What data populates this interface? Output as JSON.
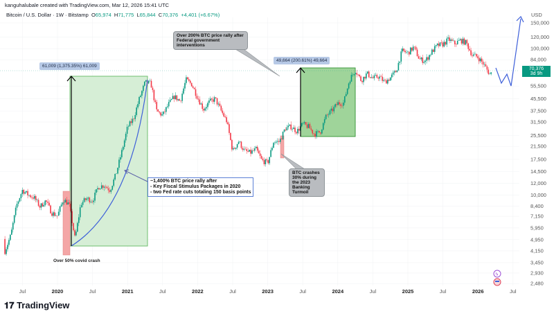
{
  "header": {
    "created": "kanguhalubale created with TradingView.com, Mar 12, 2026 15:41 UTC",
    "symbol": "Bitcoin / U.S. Dollar · 1W · Bitstamp",
    "o_label": "O",
    "o": "65,974",
    "h_label": "H",
    "h": "71,775",
    "l_label": "L",
    "l": "65,844",
    "c_label": "C",
    "c": "70,376",
    "change": "+4,401 (+6.67%)"
  },
  "footer": {
    "brand": "TradingView"
  },
  "colors": {
    "up": "#089981",
    "down": "#f23645",
    "rally_box": "#d6eed6",
    "rally_box_2": "#9fd49a",
    "crash_box": "#f4a6a6",
    "projection": "#3d5fd9"
  },
  "annotations": {
    "measure_1": "61,009 (1,375.35%) 61,009",
    "measure_2": "49,664 (200.61%) 49,664",
    "callout_2024": "Over 200% BTC price rally after Federal government interventions",
    "callout_2023": "BTC crashes 30% during the 2023 Banking Turmoil",
    "note_lines": [
      "~1,400% BTC price rally after",
      "- Key Fiscal Stimulus Packages in 2020",
      "- two Fed rate cuts totaling 150 basis points"
    ],
    "covid": "Over 50% covid crash"
  },
  "chart_data": {
    "type": "candlestick",
    "scale": "log",
    "currency": "USD",
    "interval": "1W",
    "last_price": "70,376",
    "countdown": "3d 9h",
    "y_ticks": [
      "150,000",
      "120,000",
      "100,000",
      "84,000",
      "55,500",
      "45,500",
      "37,500",
      "31,500",
      "25,500",
      "21,500",
      "17,500",
      "14,500",
      "12,000",
      "10,000",
      "8,400",
      "7,150",
      "5,950",
      "4,950",
      "4,150",
      "3,450",
      "2,930",
      "2,480"
    ],
    "x_ticks": [
      {
        "label": "Jul",
        "t": "2019-07",
        "bold": false
      },
      {
        "label": "2020",
        "t": "2020-01",
        "bold": true
      },
      {
        "label": "Jul",
        "t": "2020-07",
        "bold": false
      },
      {
        "label": "2021",
        "t": "2021-01",
        "bold": true
      },
      {
        "label": "Jul",
        "t": "2021-07",
        "bold": false
      },
      {
        "label": "2022",
        "t": "2022-01",
        "bold": true
      },
      {
        "label": "Jul",
        "t": "2022-07",
        "bold": false
      },
      {
        "label": "2023",
        "t": "2023-01",
        "bold": true
      },
      {
        "label": "Jul",
        "t": "2023-07",
        "bold": false
      },
      {
        "label": "2024",
        "t": "2024-01",
        "bold": true
      },
      {
        "label": "Jul",
        "t": "2024-07",
        "bold": false
      },
      {
        "label": "2025",
        "t": "2025-01",
        "bold": true
      },
      {
        "label": "Jul",
        "t": "2025-07",
        "bold": false
      },
      {
        "label": "2026",
        "t": "2026-01",
        "bold": true
      },
      {
        "label": "Jul",
        "t": "2026-07",
        "bold": false
      }
    ],
    "monthly_close_approx": [
      [
        "2019-04",
        5300
      ],
      [
        "2019-05",
        8500
      ],
      [
        "2019-06",
        10800
      ],
      [
        "2019-07",
        10000
      ],
      [
        "2019-08",
        9600
      ],
      [
        "2019-09",
        8300
      ],
      [
        "2019-10",
        9150
      ],
      [
        "2019-11",
        7550
      ],
      [
        "2019-12",
        7200
      ],
      [
        "2020-01",
        9350
      ],
      [
        "2020-02",
        8600
      ],
      [
        "2020-03",
        5000
      ],
      [
        "2020-04",
        8700
      ],
      [
        "2020-05",
        9450
      ],
      [
        "2020-06",
        9140
      ],
      [
        "2020-07",
        11350
      ],
      [
        "2020-08",
        11650
      ],
      [
        "2020-09",
        10780
      ],
      [
        "2020-10",
        13800
      ],
      [
        "2020-11",
        19700
      ],
      [
        "2020-12",
        29000
      ],
      [
        "2021-01",
        33100
      ],
      [
        "2021-02",
        45200
      ],
      [
        "2021-03",
        58800
      ],
      [
        "2021-04",
        57700
      ],
      [
        "2021-05",
        37300
      ],
      [
        "2021-06",
        35000
      ],
      [
        "2021-07",
        41500
      ],
      [
        "2021-08",
        47100
      ],
      [
        "2021-09",
        43800
      ],
      [
        "2021-10",
        61300
      ],
      [
        "2021-11",
        57000
      ],
      [
        "2021-12",
        46300
      ],
      [
        "2022-01",
        38500
      ],
      [
        "2022-02",
        43200
      ],
      [
        "2022-03",
        45500
      ],
      [
        "2022-04",
        37700
      ],
      [
        "2022-05",
        31800
      ],
      [
        "2022-06",
        19900
      ],
      [
        "2022-07",
        23300
      ],
      [
        "2022-08",
        20000
      ],
      [
        "2022-09",
        19400
      ],
      [
        "2022-10",
        20500
      ],
      [
        "2022-11",
        17200
      ],
      [
        "2022-12",
        16500
      ],
      [
        "2023-01",
        23100
      ],
      [
        "2023-02",
        23100
      ],
      [
        "2023-03",
        28500
      ],
      [
        "2023-04",
        29250
      ],
      [
        "2023-05",
        27200
      ],
      [
        "2023-06",
        30500
      ],
      [
        "2023-07",
        29200
      ],
      [
        "2023-08",
        26000
      ],
      [
        "2023-09",
        27000
      ],
      [
        "2023-10",
        34500
      ],
      [
        "2023-11",
        37700
      ],
      [
        "2023-12",
        42300
      ],
      [
        "2024-01",
        42600
      ],
      [
        "2024-02",
        61200
      ],
      [
        "2024-03",
        71300
      ],
      [
        "2024-04",
        60600
      ],
      [
        "2024-05",
        67500
      ],
      [
        "2024-06",
        62700
      ],
      [
        "2024-07",
        64600
      ],
      [
        "2024-08",
        59000
      ],
      [
        "2024-09",
        63300
      ],
      [
        "2024-10",
        70300
      ],
      [
        "2024-11",
        96400
      ],
      [
        "2024-12",
        93400
      ],
      [
        "2025-01",
        102400
      ],
      [
        "2025-02",
        84300
      ],
      [
        "2025-03",
        82500
      ],
      [
        "2025-04",
        94200
      ],
      [
        "2025-05",
        104600
      ],
      [
        "2025-06",
        107100
      ],
      [
        "2025-07",
        115700
      ],
      [
        "2025-08",
        108200
      ],
      [
        "2025-09",
        114000
      ],
      [
        "2025-10",
        109500
      ],
      [
        "2025-11",
        90400
      ],
      [
        "2025-12",
        87500
      ],
      [
        "2026-01",
        78000
      ],
      [
        "2026-02",
        67000
      ],
      [
        "2026-03",
        70376
      ]
    ]
  }
}
